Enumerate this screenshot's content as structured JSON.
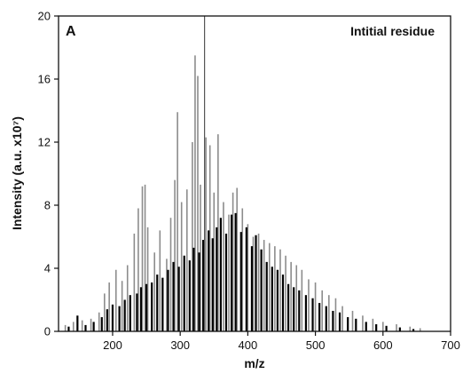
{
  "chart_data": {
    "type": "bar",
    "panel_label": "A",
    "annotation": "Intitial residue",
    "xlabel": "m/z",
    "ylabel": "Intensity (a.u. x10⁷)",
    "xlim": [
      120,
      700
    ],
    "ylim": [
      0,
      20
    ],
    "xticks": [
      200,
      300,
      400,
      500,
      600,
      700
    ],
    "yticks": [
      0,
      4,
      8,
      12,
      16,
      20
    ],
    "xtick_labels": [
      "200",
      "300",
      "400",
      "500",
      "600",
      "700"
    ],
    "ytick_labels": [
      "0",
      "4",
      "8",
      "12",
      "16",
      "20"
    ],
    "grid": false,
    "colors": {
      "dark_peaks": "#000000",
      "light_peaks": "#8c8c8c",
      "reference_line": "#555555"
    },
    "reference_line_x": 336,
    "series": [
      {
        "style": "light",
        "x": [
          130,
          142,
          155,
          168,
          180,
          188,
          195,
          205,
          214,
          222,
          232,
          238,
          244,
          248,
          252,
          262,
          270,
          280,
          286,
          292,
          296,
          302,
          310,
          318,
          322,
          326,
          330,
          338,
          344,
          350,
          356,
          364,
          372,
          378,
          384,
          392,
          400,
          408,
          416,
          424,
          432,
          440,
          448,
          456,
          464,
          472,
          480,
          490,
          500,
          510,
          520,
          530,
          540,
          555,
          570,
          585,
          600,
          620,
          640,
          655
        ],
        "values": [
          0.4,
          0.6,
          0.7,
          0.8,
          1.2,
          2.4,
          3.1,
          3.9,
          3.2,
          4.2,
          6.2,
          7.8,
          9.2,
          9.3,
          6.6,
          5.0,
          6.4,
          4.6,
          7.2,
          9.6,
          13.9,
          8.2,
          9.0,
          12.0,
          17.5,
          16.2,
          9.3,
          12.3,
          11.8,
          8.8,
          12.5,
          8.2,
          7.4,
          8.8,
          9.1,
          7.8,
          6.8,
          6.0,
          6.2,
          5.8,
          5.6,
          5.4,
          5.2,
          4.8,
          4.4,
          4.2,
          3.9,
          3.3,
          3.1,
          2.6,
          2.3,
          2.1,
          1.6,
          1.3,
          1.0,
          0.8,
          0.6,
          0.45,
          0.3,
          0.2
        ]
      },
      {
        "style": "dark",
        "x": [
          135,
          148,
          160,
          172,
          184,
          192,
          200,
          210,
          218,
          226,
          236,
          242,
          250,
          258,
          266,
          274,
          282,
          290,
          298,
          306,
          314,
          320,
          328,
          334,
          342,
          348,
          354,
          360,
          368,
          376,
          382,
          390,
          398,
          406,
          412,
          420,
          428,
          436,
          444,
          452,
          460,
          468,
          476,
          486,
          496,
          506,
          516,
          526,
          536,
          548,
          560,
          575,
          590,
          605,
          625,
          645
        ],
        "values": [
          0.3,
          1.0,
          0.4,
          0.6,
          0.9,
          1.4,
          1.7,
          1.6,
          2.0,
          2.3,
          2.4,
          2.8,
          3.0,
          3.1,
          3.6,
          3.4,
          3.9,
          4.4,
          4.1,
          4.8,
          4.5,
          5.3,
          5.0,
          5.8,
          6.4,
          5.9,
          6.6,
          7.2,
          6.2,
          7.4,
          7.5,
          6.3,
          6.6,
          5.4,
          6.1,
          5.2,
          4.4,
          4.1,
          3.9,
          3.6,
          3.0,
          2.8,
          2.6,
          2.3,
          2.1,
          1.8,
          1.6,
          1.3,
          1.2,
          0.9,
          0.8,
          0.6,
          0.45,
          0.35,
          0.25,
          0.15
        ]
      }
    ]
  }
}
